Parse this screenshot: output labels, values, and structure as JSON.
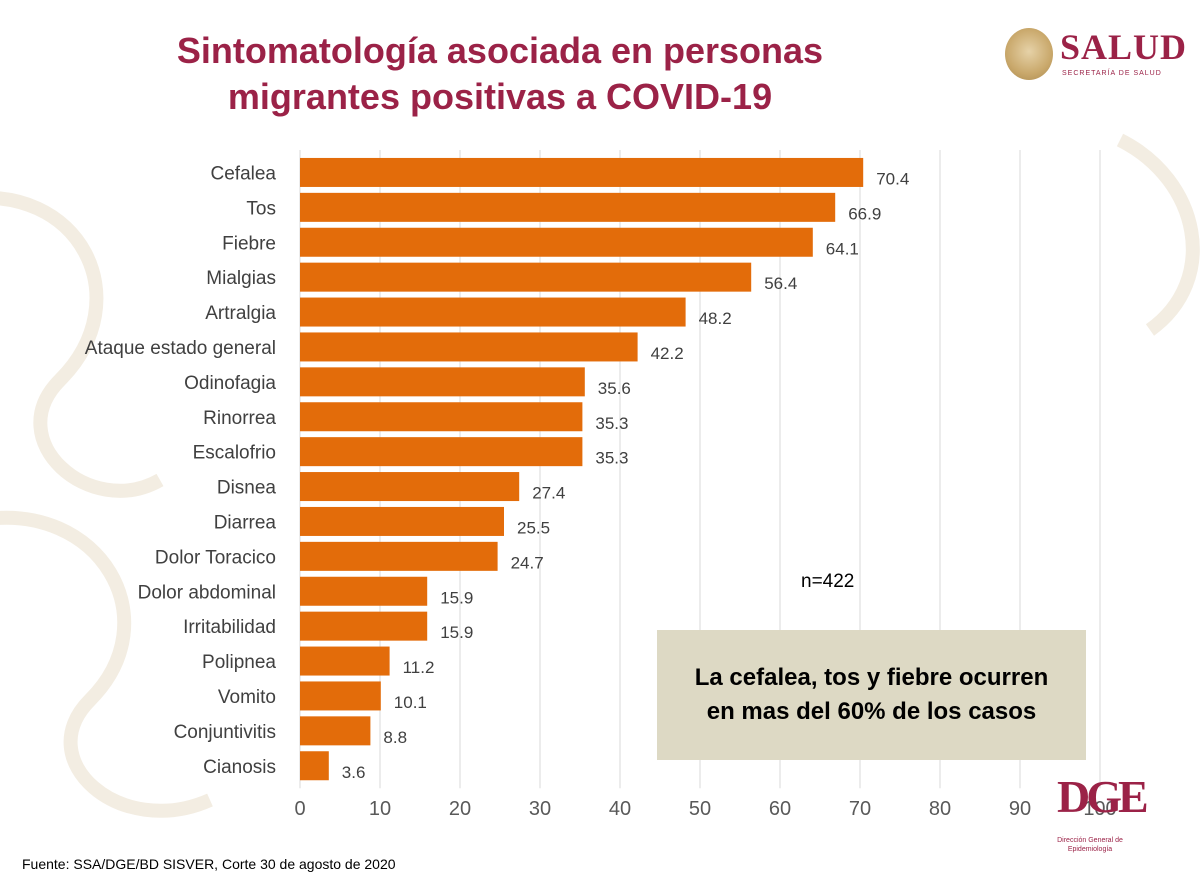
{
  "title_line1": "Sintomatología asociada en personas",
  "title_line2": "migrantes  positivas a COVID-19",
  "logo": {
    "name": "SALUD",
    "subtitle": "SECRETARÍA DE SALUD"
  },
  "n_label": "n=422",
  "note": "La cefalea, tos y fiebre ocurren en mas del 60% de los casos",
  "source": "Fuente: SSA/DGE/BD SISVER, Corte 30 de agosto de 2020",
  "dge_logo": {
    "mark": "DGE",
    "subtitle": "Dirección General de Epidemiología"
  },
  "colors": {
    "bar": "#e36c0a",
    "title": "#9b2247",
    "note_bg": "#ddd9c4",
    "grid": "#d9d9d9"
  },
  "chart_data": {
    "type": "bar",
    "orientation": "horizontal",
    "categories": [
      "Cefalea",
      "Tos",
      "Fiebre",
      "Mialgias",
      "Artralgia",
      "Ataque estado general",
      "Odinofagia",
      "Rinorrea",
      "Escalofrio",
      "Disnea",
      "Diarrea",
      "Dolor Toracico",
      "Dolor abdominal",
      "Irritabilidad",
      "Polipnea",
      "Vomito",
      "Conjuntivitis",
      "Cianosis"
    ],
    "values": [
      70.4,
      66.9,
      64.1,
      56.4,
      48.2,
      42.2,
      35.6,
      35.3,
      35.3,
      27.4,
      25.5,
      24.7,
      15.9,
      15.9,
      11.2,
      10.1,
      8.8,
      3.6
    ],
    "value_labels": [
      "70.4",
      "66.9",
      "64.1",
      "56.4",
      "48.2",
      "42.2",
      "35.6",
      "35.3",
      "35.3",
      "27.4",
      "25.5",
      "24.7",
      "15.9",
      "15.9",
      "11.2",
      "10.1",
      "8.8",
      "3.6"
    ],
    "xlim": [
      0,
      100
    ],
    "xticks": [
      0,
      10,
      20,
      30,
      40,
      50,
      60,
      70,
      80,
      90,
      100
    ],
    "grid": true,
    "data_labels": true
  }
}
